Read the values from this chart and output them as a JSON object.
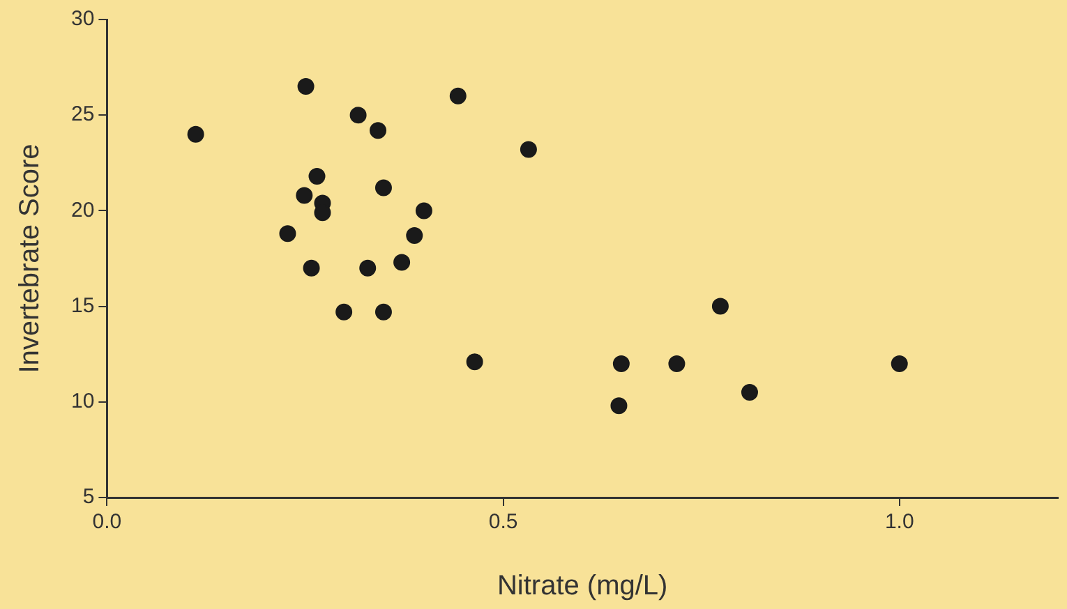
{
  "chart_data": {
    "type": "scatter",
    "xlabel": "Nitrate (mg/L)",
    "ylabel": "Invertebrate Score",
    "x": [
      0.112,
      0.251,
      0.317,
      0.342,
      0.443,
      0.532,
      0.265,
      0.249,
      0.272,
      0.272,
      0.349,
      0.4,
      0.228,
      0.388,
      0.372,
      0.258,
      0.329,
      0.299,
      0.349,
      0.464,
      0.774,
      0.649,
      0.719,
      0.646,
      0.811,
      1.0
    ],
    "values": [
      24.0,
      26.5,
      25.0,
      24.2,
      26.0,
      23.2,
      21.8,
      20.8,
      20.4,
      19.9,
      21.2,
      20.0,
      18.8,
      18.7,
      17.3,
      17.0,
      17.0,
      14.7,
      14.7,
      12.1,
      15.0,
      12.0,
      12.0,
      9.8,
      10.5,
      12.0
    ],
    "color": "#1a1a1a",
    "marker": "circle",
    "grid": false,
    "legend": false,
    "xlim": [
      0,
      1.2
    ],
    "xticks": [
      {
        "value": 0,
        "label": "0.0"
      },
      {
        "value": 0.5,
        "label": "0.5"
      },
      {
        "value": 1,
        "label": "1.0"
      }
    ],
    "ylim": [
      5,
      30
    ],
    "yticks": [
      5,
      10,
      15,
      20,
      25,
      30
    ]
  }
}
